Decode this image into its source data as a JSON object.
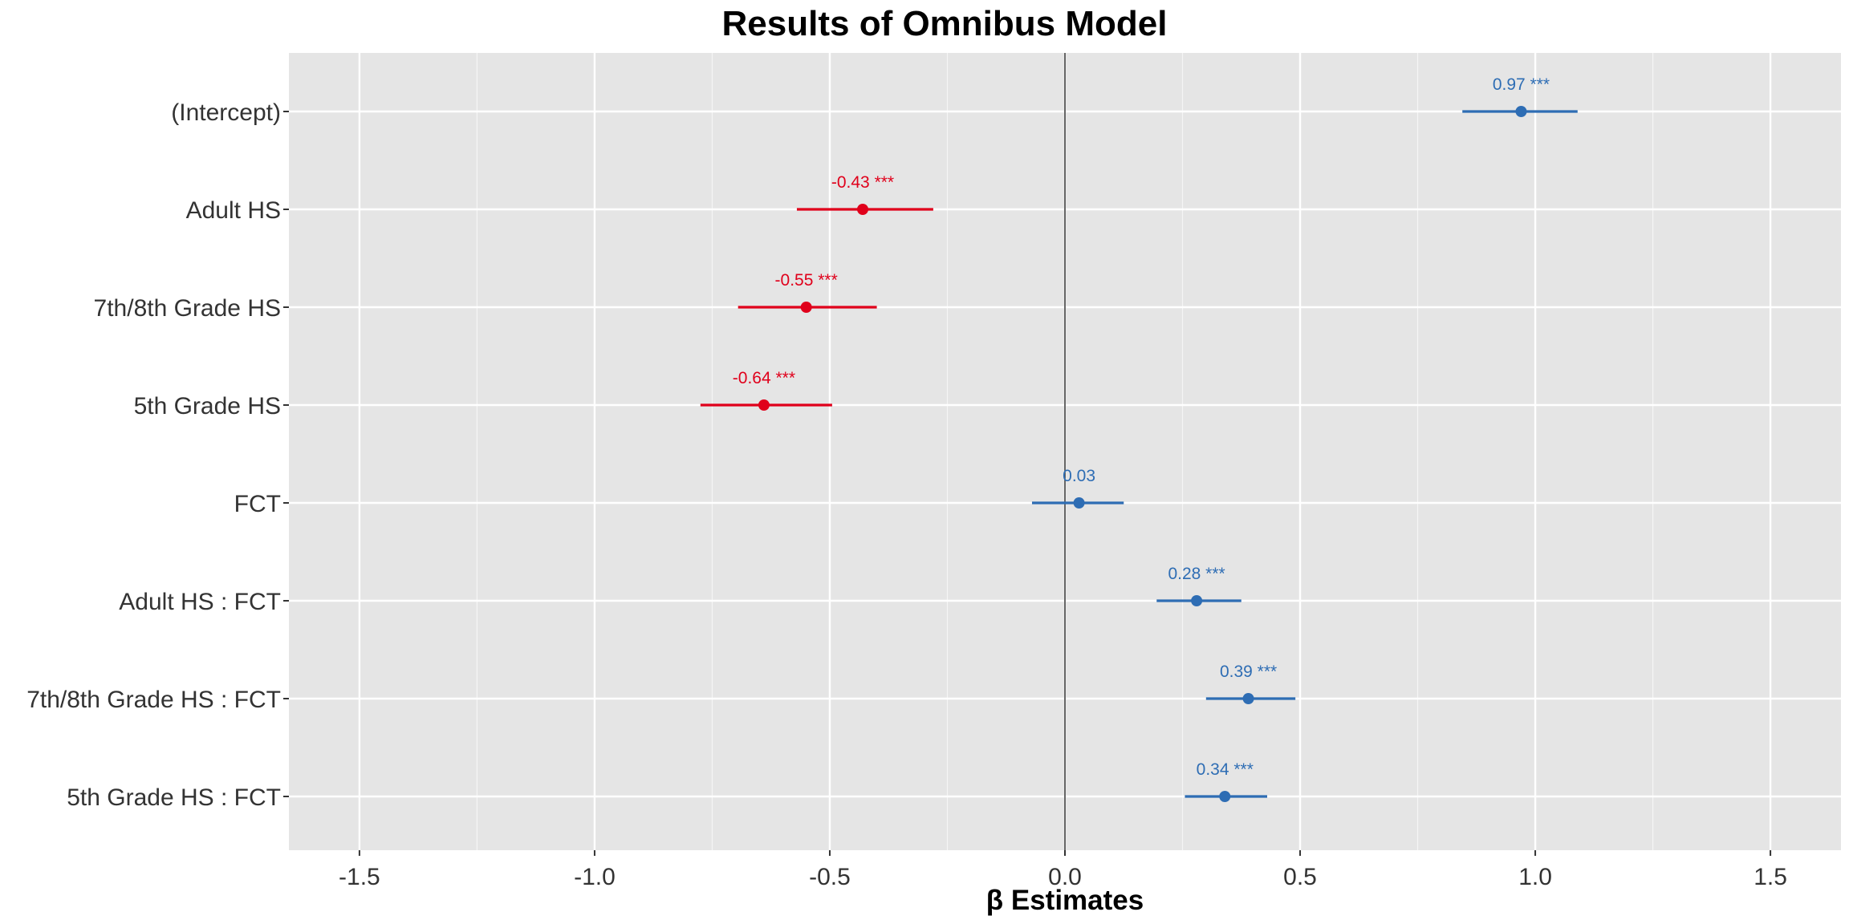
{
  "chart_data": {
    "type": "forest",
    "title": "Results of Omnibus Model",
    "xlabel": "β Estimates",
    "ylabel": "",
    "xlim": [
      -1.65,
      1.65
    ],
    "x_ticks": [
      -1.5,
      -1.0,
      -0.5,
      0.0,
      0.5,
      1.0,
      1.5
    ],
    "x_tick_labels": [
      "-1.5",
      "-1.0",
      "-0.5",
      "0.0",
      "0.5",
      "1.0",
      "1.5"
    ],
    "reference_line": 0,
    "grid": true,
    "colors": {
      "positive": "#2E6DB4",
      "negative": "#E0001B",
      "panel": "#E5E5E5",
      "grid": "#FFFFFF",
      "refline": "#333333"
    },
    "terms": [
      {
        "name": "(Intercept)",
        "estimate": 0.97,
        "ci_low": 0.845,
        "ci_high": 1.09,
        "label": "0.97 ***"
      },
      {
        "name": "Adult HS",
        "estimate": -0.43,
        "ci_low": -0.57,
        "ci_high": -0.28,
        "label": "-0.43 ***"
      },
      {
        "name": "7th/8th Grade HS",
        "estimate": -0.55,
        "ci_low": -0.695,
        "ci_high": -0.4,
        "label": "-0.55 ***"
      },
      {
        "name": "5th Grade HS",
        "estimate": -0.64,
        "ci_low": -0.775,
        "ci_high": -0.495,
        "label": "-0.64 ***"
      },
      {
        "name": "FCT",
        "estimate": 0.03,
        "ci_low": -0.07,
        "ci_high": 0.125,
        "label": "0.03"
      },
      {
        "name": "Adult HS : FCT",
        "estimate": 0.28,
        "ci_low": 0.195,
        "ci_high": 0.375,
        "label": "0.28 ***"
      },
      {
        "name": "7th/8th Grade HS : FCT",
        "estimate": 0.39,
        "ci_low": 0.3,
        "ci_high": 0.49,
        "label": "0.39 ***"
      },
      {
        "name": "5th Grade HS : FCT",
        "estimate": 0.34,
        "ci_low": 0.255,
        "ci_high": 0.43,
        "label": "0.34 ***"
      }
    ]
  }
}
